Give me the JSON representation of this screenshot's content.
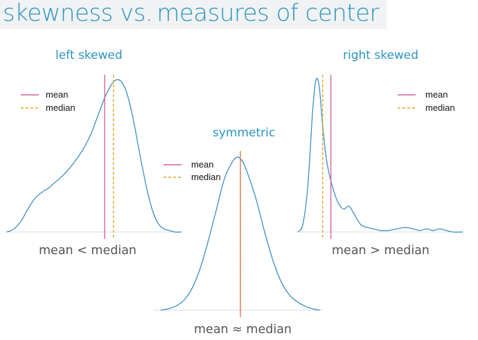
{
  "title": {
    "part1": "skewness vs.",
    "part2": "measures of center"
  },
  "colors": {
    "title": "#2b94c0",
    "density": "#3b8ec4",
    "mean": "#d4629c",
    "median": "#e6a21e",
    "axis": "#d9d9d9",
    "caption": "#555555"
  },
  "chart_data": [
    {
      "type": "line",
      "title": "left skewed",
      "caption": "mean < median",
      "legend": {
        "position": "top-left",
        "entries": [
          "mean",
          "median"
        ]
      },
      "xlim": [
        0,
        1
      ],
      "ylim": [
        0,
        1
      ],
      "series": [
        {
          "x": [
            0,
            0.04,
            0.08,
            0.12,
            0.16,
            0.2,
            0.24,
            0.28,
            0.32,
            0.36,
            0.4,
            0.44,
            0.48,
            0.52,
            0.56,
            0.6,
            0.63,
            0.66,
            0.69,
            0.72,
            0.75,
            0.78,
            0.81,
            0.84,
            0.87,
            0.9,
            0.93,
            0.96,
            1.0
          ],
          "y": [
            0,
            0.02,
            0.07,
            0.15,
            0.22,
            0.26,
            0.29,
            0.33,
            0.37,
            0.42,
            0.48,
            0.55,
            0.64,
            0.76,
            0.88,
            0.97,
            1.0,
            0.98,
            0.9,
            0.76,
            0.58,
            0.4,
            0.24,
            0.12,
            0.05,
            0.02,
            0.01,
            0.0,
            0.0
          ]
        }
      ],
      "mean": 0.56,
      "median": 0.61
    },
    {
      "type": "line",
      "title": "symmetric",
      "caption": "mean ≈ median",
      "legend": {
        "position": "top-left",
        "entries": [
          "mean",
          "median"
        ]
      },
      "xlim": [
        0,
        1
      ],
      "ylim": [
        0,
        1
      ],
      "series": [
        {
          "x": [
            0,
            0.05,
            0.1,
            0.15,
            0.2,
            0.25,
            0.3,
            0.35,
            0.4,
            0.45,
            0.48,
            0.5,
            0.52,
            0.55,
            0.6,
            0.65,
            0.7,
            0.75,
            0.8,
            0.85,
            0.9,
            0.95,
            1.0
          ],
          "y": [
            0,
            0.01,
            0.03,
            0.07,
            0.15,
            0.28,
            0.46,
            0.66,
            0.86,
            0.97,
            1.0,
            0.99,
            0.96,
            0.88,
            0.72,
            0.52,
            0.34,
            0.2,
            0.11,
            0.06,
            0.03,
            0.01,
            0.0
          ]
        }
      ],
      "mean": 0.5,
      "median": 0.5
    },
    {
      "type": "line",
      "title": "right skewed",
      "caption": "mean > median",
      "legend": {
        "position": "top-right",
        "entries": [
          "mean",
          "median"
        ]
      },
      "xlim": [
        0,
        1
      ],
      "ylim": [
        0,
        1
      ],
      "series": [
        {
          "x": [
            0,
            0.03,
            0.06,
            0.09,
            0.11,
            0.13,
            0.15,
            0.17,
            0.19,
            0.22,
            0.25,
            0.28,
            0.31,
            0.34,
            0.38,
            0.42,
            0.46,
            0.5,
            0.55,
            0.6,
            0.65,
            0.7,
            0.74,
            0.78,
            0.82,
            0.86,
            0.9,
            0.94,
            1.0
          ],
          "y": [
            0,
            0.05,
            0.3,
            0.8,
            1.0,
            0.95,
            0.7,
            0.5,
            0.38,
            0.26,
            0.18,
            0.15,
            0.17,
            0.12,
            0.05,
            0.03,
            0.02,
            0.01,
            0.01,
            0.02,
            0.03,
            0.02,
            0.01,
            0.02,
            0.01,
            0.02,
            0.01,
            0.0,
            0.0
          ]
        }
      ],
      "mean": 0.2,
      "median": 0.15
    }
  ]
}
